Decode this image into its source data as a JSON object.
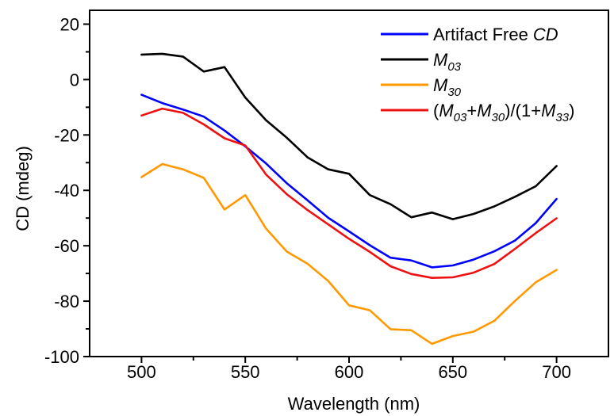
{
  "chart_data": {
    "type": "line",
    "xlabel": "Wavelength (nm)",
    "ylabel": "CD (mdeg)",
    "xlim": [
      475,
      725
    ],
    "ylim": [
      -100,
      25
    ],
    "xticks": [
      500,
      550,
      600,
      650,
      700
    ],
    "yticks": [
      -100,
      -80,
      -60,
      -40,
      -20,
      0,
      20
    ],
    "grid": false,
    "legend_position": "top-right",
    "x": [
      500,
      510,
      520,
      530,
      540,
      550,
      560,
      570,
      580,
      590,
      600,
      610,
      620,
      630,
      640,
      650,
      660,
      670,
      680,
      690,
      700
    ],
    "series": [
      {
        "name": "Artifact Free CD",
        "legend_parts": [
          {
            "t": "Artifact Free "
          },
          {
            "t": "CD",
            "i": true
          }
        ],
        "color": "#0000ff",
        "values": [
          -5.5,
          -8.5,
          -10.8,
          -13.4,
          -18.4,
          -24.1,
          -30.3,
          -37.4,
          -43.6,
          -49.9,
          -54.8,
          -59.8,
          -64.3,
          -65.3,
          -67.8,
          -67.1,
          -65.0,
          -62.0,
          -58.1,
          -51.8,
          -43.1
        ]
      },
      {
        "name": "M03",
        "legend_parts": [
          {
            "t": "M",
            "i": true
          },
          {
            "t": "03",
            "i": true,
            "sub": true
          }
        ],
        "color": "#000000",
        "values": [
          9.0,
          9.3,
          8.3,
          2.9,
          4.5,
          -6.5,
          -14.7,
          -21.0,
          -28.1,
          -32.4,
          -34.0,
          -41.7,
          -45.0,
          -49.7,
          -48.0,
          -50.4,
          -48.5,
          -45.8,
          -42.3,
          -38.5,
          -31.2
        ]
      },
      {
        "name": "M30",
        "legend_parts": [
          {
            "t": "M",
            "i": true
          },
          {
            "t": "30",
            "i": true,
            "sub": true
          }
        ],
        "color": "#ff9900",
        "values": [
          -35.2,
          -30.5,
          -32.4,
          -35.5,
          -46.9,
          -41.7,
          -53.8,
          -62.1,
          -66.5,
          -72.7,
          -81.5,
          -83.3,
          -90.1,
          -90.5,
          -95.4,
          -92.6,
          -91.0,
          -87.1,
          -79.9,
          -73.2,
          -68.7
        ]
      },
      {
        "name": "(M03+M30)/(1+M33)",
        "legend_parts": [
          {
            "t": "("
          },
          {
            "t": "M",
            "i": true
          },
          {
            "t": "03",
            "i": true,
            "sub": true
          },
          {
            "t": "+"
          },
          {
            "t": "M",
            "i": true
          },
          {
            "t": "30",
            "i": true,
            "sub": true
          },
          {
            "t": ")/(1+"
          },
          {
            "t": "M",
            "i": true
          },
          {
            "t": "33",
            "i": true,
            "sub": true
          },
          {
            "t": ")"
          }
        ],
        "color": "#ee1111",
        "values": [
          -13.0,
          -10.5,
          -12.0,
          -16.2,
          -21.2,
          -23.8,
          -34.3,
          -41.4,
          -47.1,
          -52.3,
          -57.5,
          -62.2,
          -67.4,
          -70.2,
          -71.6,
          -71.4,
          -69.7,
          -66.6,
          -61.1,
          -55.4,
          -50.1
        ]
      }
    ]
  }
}
